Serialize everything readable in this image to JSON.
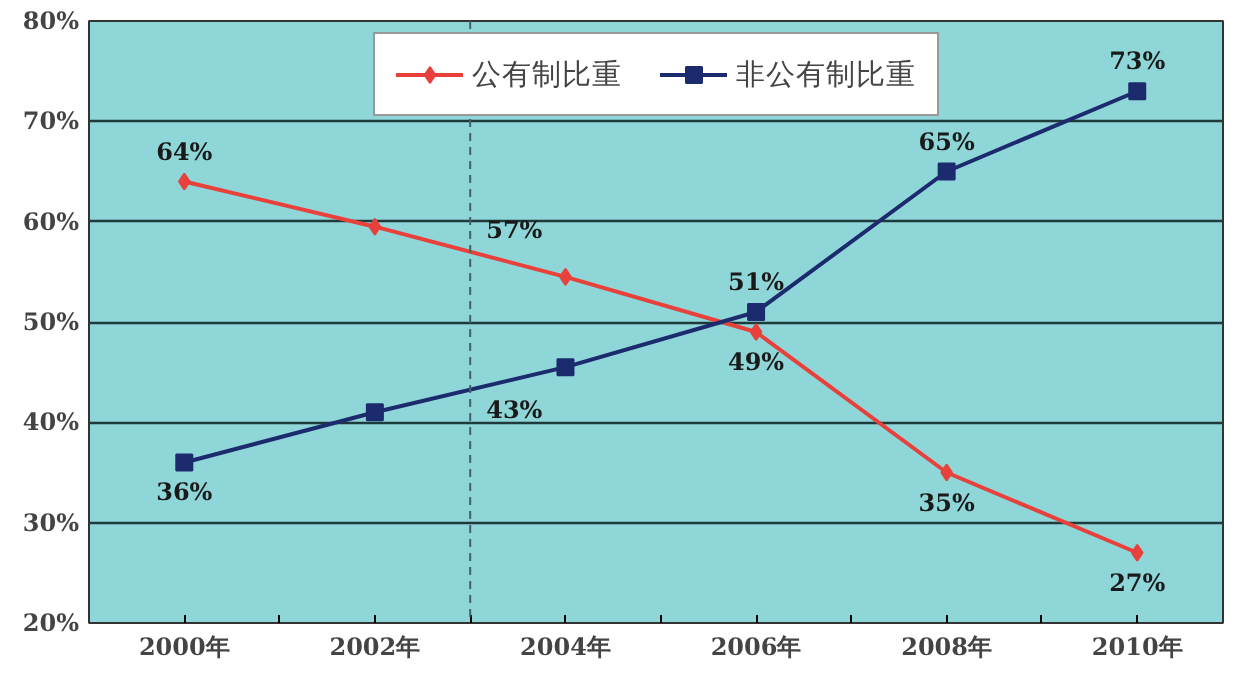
{
  "chart_data": {
    "type": "line",
    "x": [
      2000,
      2002,
      2004,
      2006,
      2008,
      2010
    ],
    "series": [
      {
        "name": "公有制比重",
        "color": "#e8413c",
        "marker": "diamond",
        "values": [
          64,
          59.5,
          54.5,
          49,
          35,
          27
        ],
        "value_labels": [
          "64%",
          null,
          null,
          "49%",
          "35%",
          "27%"
        ]
      },
      {
        "name": "非公有制比重",
        "color": "#1c2a6e",
        "marker": "square",
        "values": [
          36,
          41,
          45.5,
          51,
          65,
          73
        ],
        "value_labels": [
          "36%",
          null,
          null,
          "51%",
          "65%",
          "73%"
        ]
      }
    ],
    "xlim": [
      1999.0,
      2010.9
    ],
    "xticks": [
      {
        "value": 2000,
        "label": "2000年"
      },
      {
        "value": 2001,
        "label": null
      },
      {
        "value": 2002,
        "label": "2002年"
      },
      {
        "value": 2003,
        "label": null
      },
      {
        "value": 2004,
        "label": "2004年"
      },
      {
        "value": 2005,
        "label": null
      },
      {
        "value": 2006,
        "label": "2006年"
      },
      {
        "value": 2007,
        "label": null
      },
      {
        "value": 2008,
        "label": "2008年"
      },
      {
        "value": 2009,
        "label": null
      },
      {
        "value": 2010,
        "label": "2010年"
      }
    ],
    "ylim": [
      20,
      80
    ],
    "yticks": [
      {
        "value": 20,
        "label": "20%"
      },
      {
        "value": 30,
        "label": "30%"
      },
      {
        "value": 40,
        "label": "40%"
      },
      {
        "value": 50,
        "label": "50%"
      },
      {
        "value": 60,
        "label": "60%"
      },
      {
        "value": 70,
        "label": "70%"
      },
      {
        "value": 80,
        "label": "80%"
      }
    ],
    "ref_lines": [
      {
        "axis": "x",
        "value": 2003,
        "label": null,
        "color": "#40606a",
        "line_style": "dashed"
      }
    ],
    "annotations": [
      {
        "text": "57%",
        "x": 2003,
        "y": 57
      },
      {
        "text": "43%",
        "x": 2003,
        "y": 43
      }
    ],
    "grid": "y",
    "legend": "top"
  }
}
